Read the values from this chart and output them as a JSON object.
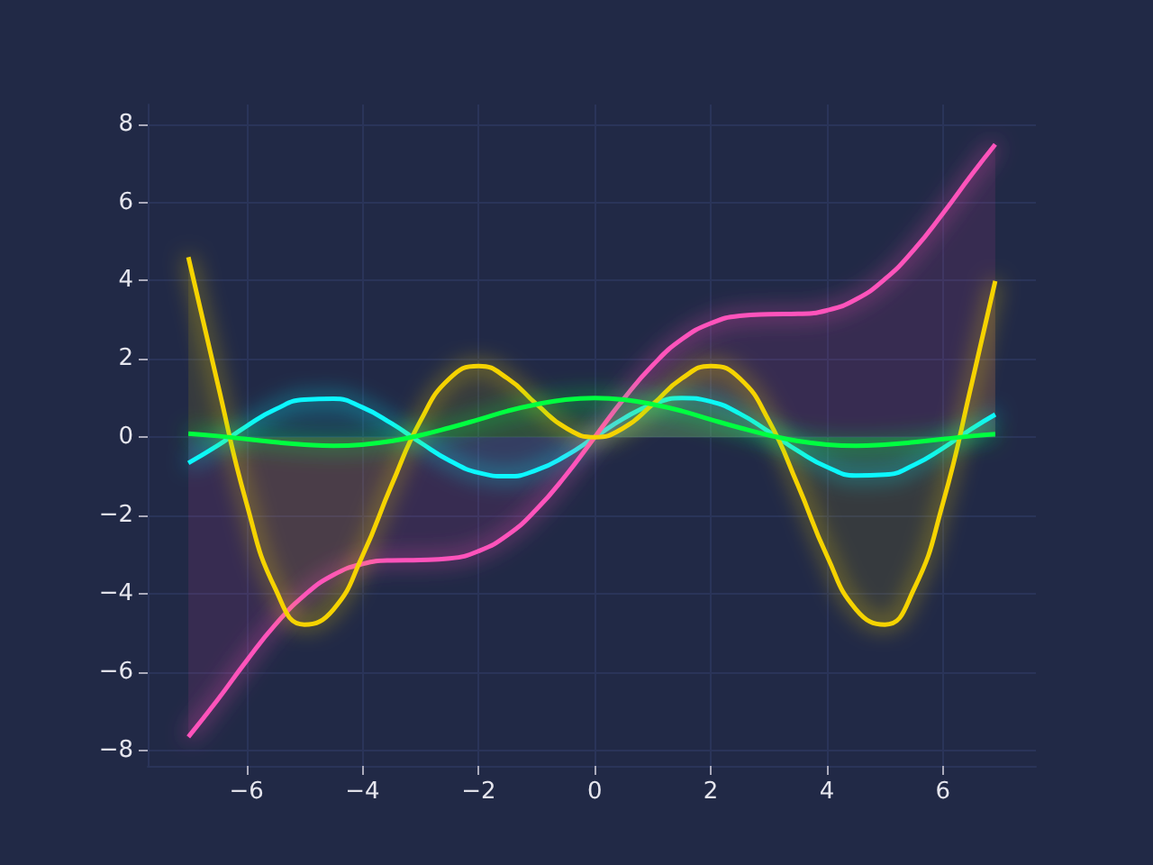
{
  "chart_data": {
    "type": "area",
    "x": [
      -7,
      -6.5,
      -6,
      -5.5,
      -5,
      -4.5,
      -4,
      -3.5,
      -3,
      -2.5,
      -2,
      -1.5,
      -1,
      -0.5,
      0,
      0.5,
      1,
      1.5,
      2,
      2.5,
      3,
      3.5,
      4,
      4.5,
      5,
      5.5,
      6,
      6.5,
      6.9
    ],
    "series": [
      {
        "color": "#08f7fe",
        "values": [
          -0.66,
          -0.22,
          0.28,
          0.71,
          0.96,
          0.98,
          0.76,
          0.35,
          -0.14,
          -0.6,
          -0.91,
          -1.0,
          -0.84,
          -0.48,
          0,
          0.48,
          0.84,
          1.0,
          0.91,
          0.6,
          0.14,
          -0.35,
          -0.76,
          -0.98,
          -0.96,
          -0.71,
          -0.28,
          0.22,
          0.58
        ]
      },
      {
        "color": "#fe53bb",
        "values": [
          -7.66,
          -6.72,
          -5.72,
          -4.79,
          -4.04,
          -3.52,
          -3.24,
          -3.15,
          -3.14,
          -3.1,
          -2.91,
          -2.5,
          -1.84,
          -0.98,
          0,
          0.98,
          1.84,
          2.5,
          2.91,
          3.1,
          3.14,
          3.15,
          3.24,
          3.52,
          4.04,
          4.79,
          5.72,
          6.72,
          7.48
        ]
      },
      {
        "color": "#f5d300",
        "values": [
          4.6,
          1.4,
          -1.68,
          -3.88,
          -4.79,
          -4.4,
          -3.03,
          -1.23,
          0.42,
          1.5,
          1.82,
          1.5,
          0.84,
          0.24,
          0,
          0.24,
          0.84,
          1.5,
          1.82,
          1.5,
          0.42,
          -1.23,
          -3.03,
          -4.4,
          -4.79,
          -3.88,
          -1.68,
          1.4,
          3.99
        ]
      },
      {
        "color": "#00ff41",
        "values": [
          0.09,
          0.03,
          -0.05,
          -0.13,
          -0.19,
          -0.22,
          -0.19,
          -0.1,
          0.05,
          0.24,
          0.45,
          0.67,
          0.84,
          0.96,
          1,
          0.96,
          0.84,
          0.67,
          0.45,
          0.24,
          0.05,
          -0.1,
          -0.19,
          -0.22,
          -0.19,
          -0.13,
          -0.05,
          0.03,
          0.08
        ]
      }
    ],
    "xlim": [
      -7.7,
      7.6
    ],
    "ylim": [
      -8.4,
      8.5
    ],
    "xticks": [
      {
        "value": -6,
        "label": "−6"
      },
      {
        "value": -4,
        "label": "−4"
      },
      {
        "value": -2,
        "label": "−2"
      },
      0,
      2,
      4,
      6
    ],
    "yticks": [
      {
        "value": -8,
        "label": "−8"
      },
      {
        "value": -6,
        "label": "−6"
      },
      {
        "value": -4,
        "label": "−4"
      },
      {
        "value": -2,
        "label": "−2"
      },
      0,
      2,
      4,
      6,
      8
    ],
    "grid": true
  }
}
